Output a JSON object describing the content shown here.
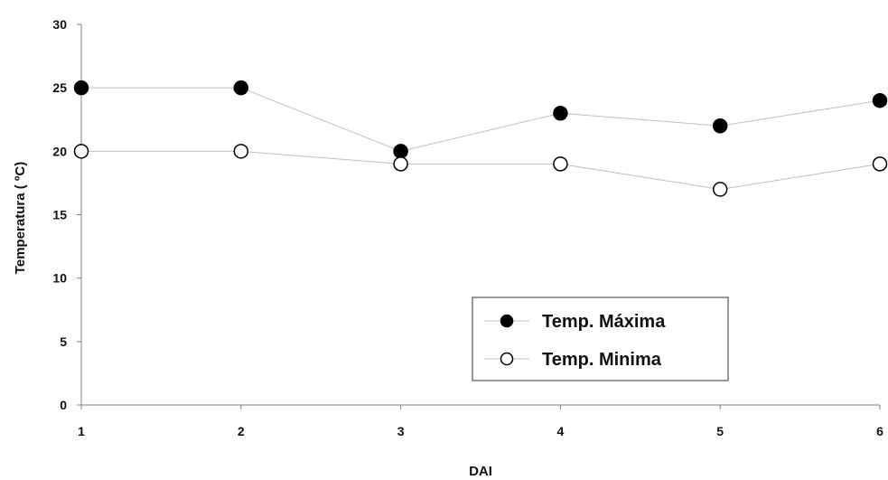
{
  "chart_data": {
    "type": "line",
    "title": "",
    "xlabel": "DAI",
    "ylabel": "Temperatura ( ºC)",
    "x": [
      1,
      2,
      3,
      4,
      5,
      6
    ],
    "xticks": [
      "1",
      "2",
      "3",
      "4",
      "5",
      "6"
    ],
    "yticks": [
      "0",
      "5",
      "10",
      "15",
      "20",
      "25",
      "30"
    ],
    "xlim": [
      1,
      6
    ],
    "ylim": [
      0,
      30
    ],
    "grid": false,
    "legend_position": "lower-right",
    "series": [
      {
        "name": "Temp. Máxima",
        "values": [
          25,
          25,
          20,
          23,
          22,
          24
        ],
        "marker": "filled-circle",
        "marker_color": "#000000",
        "line_color": "#c0c0c0"
      },
      {
        "name": "Temp. Minima",
        "values": [
          20,
          20,
          19,
          19,
          17,
          19
        ],
        "marker": "open-circle",
        "marker_color": "#000000",
        "line_color": "#c0c0c0"
      }
    ]
  }
}
